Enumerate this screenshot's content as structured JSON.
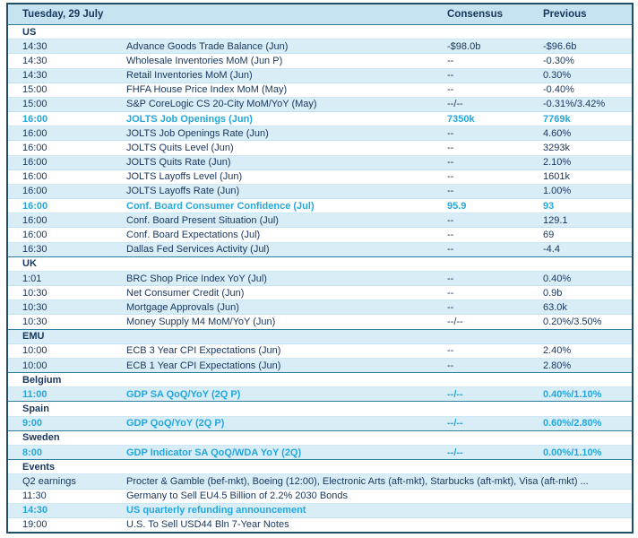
{
  "header": {
    "date_label": "Tuesday, 29 July",
    "consensus_label": "Consensus",
    "previous_label": "Previous"
  },
  "colors": {
    "navy_text": "#17365d",
    "highlight_cyan": "#24a7de",
    "stripe_blue": "#d9edf7",
    "header_bg": "#c6e3f2",
    "outer_border": "#1f4e66",
    "section_separator": "#2e7f9e"
  },
  "sections": [
    {
      "name": "US",
      "rows": [
        {
          "time": "14:30",
          "event": "Advance Goods Trade Balance (Jun)",
          "consensus": "-$98.0b",
          "previous": "-$96.6b",
          "highlight": false
        },
        {
          "time": "14:30",
          "event": "Wholesale Inventories MoM (Jun P)",
          "consensus": "--",
          "previous": "-0.30%",
          "highlight": false
        },
        {
          "time": "14:30",
          "event": "Retail Inventories MoM (Jun)",
          "consensus": "--",
          "previous": "0.30%",
          "highlight": false
        },
        {
          "time": "15:00",
          "event": "FHFA House Price Index MoM (May)",
          "consensus": "--",
          "previous": "-0.40%",
          "highlight": false
        },
        {
          "time": "15:00",
          "event": "S&P CoreLogic CS 20-City MoM/YoY (May)",
          "consensus": "--/--",
          "previous": "-0.31%/3.42%",
          "highlight": false
        },
        {
          "time": "16:00",
          "event": "JOLTS Job Openings (Jun)",
          "consensus": "7350k",
          "previous": "7769k",
          "highlight": true
        },
        {
          "time": "16:00",
          "event": "JOLTS Job Openings Rate (Jun)",
          "consensus": "--",
          "previous": "4.60%",
          "highlight": false
        },
        {
          "time": "16:00",
          "event": "JOLTS Quits Level (Jun)",
          "consensus": "--",
          "previous": "3293k",
          "highlight": false
        },
        {
          "time": "16:00",
          "event": "JOLTS Quits Rate (Jun)",
          "consensus": "--",
          "previous": "2.10%",
          "highlight": false
        },
        {
          "time": "16:00",
          "event": "JOLTS Layoffs Level (Jun)",
          "consensus": "--",
          "previous": "1601k",
          "highlight": false
        },
        {
          "time": "16:00",
          "event": "JOLTS Layoffs Rate (Jun)",
          "consensus": "--",
          "previous": "1.00%",
          "highlight": false
        },
        {
          "time": "16:00",
          "event": "Conf. Board Consumer Confidence (Jul)",
          "consensus": "95.9",
          "previous": "93",
          "highlight": true
        },
        {
          "time": "16:00",
          "event": "Conf. Board Present Situation (Jul)",
          "consensus": "--",
          "previous": "129.1",
          "highlight": false
        },
        {
          "time": "16:00",
          "event": "Conf. Board Expectations (Jul)",
          "consensus": "--",
          "previous": "69",
          "highlight": false
        },
        {
          "time": "16:30",
          "event": "Dallas Fed Services Activity (Jul)",
          "consensus": "--",
          "previous": "-4.4",
          "highlight": false
        }
      ]
    },
    {
      "name": "UK",
      "rows": [
        {
          "time": "1:01",
          "event": "BRC Shop Price Index YoY (Jul)",
          "consensus": "--",
          "previous": "0.40%",
          "highlight": false
        },
        {
          "time": "10:30",
          "event": "Net Consumer Credit (Jun)",
          "consensus": "--",
          "previous": "0.9b",
          "highlight": false
        },
        {
          "time": "10:30",
          "event": "Mortgage Approvals (Jun)",
          "consensus": "--",
          "previous": "63.0k",
          "highlight": false
        },
        {
          "time": "10:30",
          "event": "Money Supply M4 MoM/YoY (Jun)",
          "consensus": "--/--",
          "previous": "0.20%/3.50%",
          "highlight": false
        }
      ]
    },
    {
      "name": "EMU",
      "rows": [
        {
          "time": "10:00",
          "event": "ECB 3 Year CPI Expectations (Jun)",
          "consensus": "--",
          "previous": "2.40%",
          "highlight": false
        },
        {
          "time": "10:00",
          "event": "ECB 1 Year CPI Expectations (Jun)",
          "consensus": "--",
          "previous": "2.80%",
          "highlight": false
        }
      ]
    },
    {
      "name": "Belgium",
      "rows": [
        {
          "time": "11:00",
          "event": "GDP SA QoQ/YoY (2Q P)",
          "consensus": "--/--",
          "previous": "0.40%/1.10%",
          "highlight": true
        }
      ]
    },
    {
      "name": "Spain",
      "rows": [
        {
          "time": "9:00",
          "event": "GDP QoQ/YoY (2Q P)",
          "consensus": "--/--",
          "previous": "0.60%/2.80%",
          "highlight": true
        }
      ]
    },
    {
      "name": "Sweden",
      "rows": [
        {
          "time": "8:00",
          "event": "GDP Indicator SA QoQ/WDA YoY (2Q)",
          "consensus": "--/--",
          "previous": "0.00%/1.10%",
          "highlight": true
        }
      ]
    },
    {
      "name": "Events",
      "rows": [
        {
          "time": "Q2 earnings",
          "event": "Procter & Gamble (bef-mkt), Boeing (12:00), Electronic Arts (aft-mkt), Starbucks (aft-mkt), Visa (aft-mkt) ...",
          "consensus": "",
          "previous": "",
          "highlight": false
        },
        {
          "time": "11:30",
          "event": "Germany to Sell EU4.5 Billion of 2.2% 2030 Bonds",
          "consensus": "",
          "previous": "",
          "highlight": false
        },
        {
          "time": "14:30",
          "event": "US quarterly refunding announcement",
          "consensus": "",
          "previous": "",
          "highlight": true
        },
        {
          "time": "19:00",
          "event": "U.S. To Sell USD44 Bln 7-Year Notes",
          "consensus": "",
          "previous": "",
          "highlight": false
        }
      ]
    }
  ]
}
